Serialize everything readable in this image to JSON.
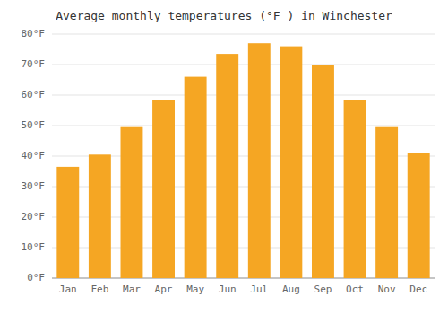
{
  "chart_data": {
    "type": "bar",
    "title": "Average monthly temperatures (°F ) in Winchester",
    "categories": [
      "Jan",
      "Feb",
      "Mar",
      "Apr",
      "May",
      "Jun",
      "Jul",
      "Aug",
      "Sep",
      "Oct",
      "Nov",
      "Dec"
    ],
    "values": [
      36.5,
      40.5,
      49.5,
      58.5,
      66,
      73.5,
      77,
      76,
      70,
      58.5,
      49.5,
      41
    ],
    "color": "#F5A623",
    "ylim": [
      0,
      80
    ],
    "yticks": [
      {
        "value": 0,
        "label": "0°F"
      },
      {
        "value": 10,
        "label": "10°F"
      },
      {
        "value": 20,
        "label": "20°F"
      },
      {
        "value": 30,
        "label": "30°F"
      },
      {
        "value": 40,
        "label": "40°F"
      },
      {
        "value": 50,
        "label": "50°F"
      },
      {
        "value": 60,
        "label": "60°F"
      },
      {
        "value": 70,
        "label": "70°F"
      },
      {
        "value": 80,
        "label": "80°F"
      }
    ],
    "grid": true
  }
}
